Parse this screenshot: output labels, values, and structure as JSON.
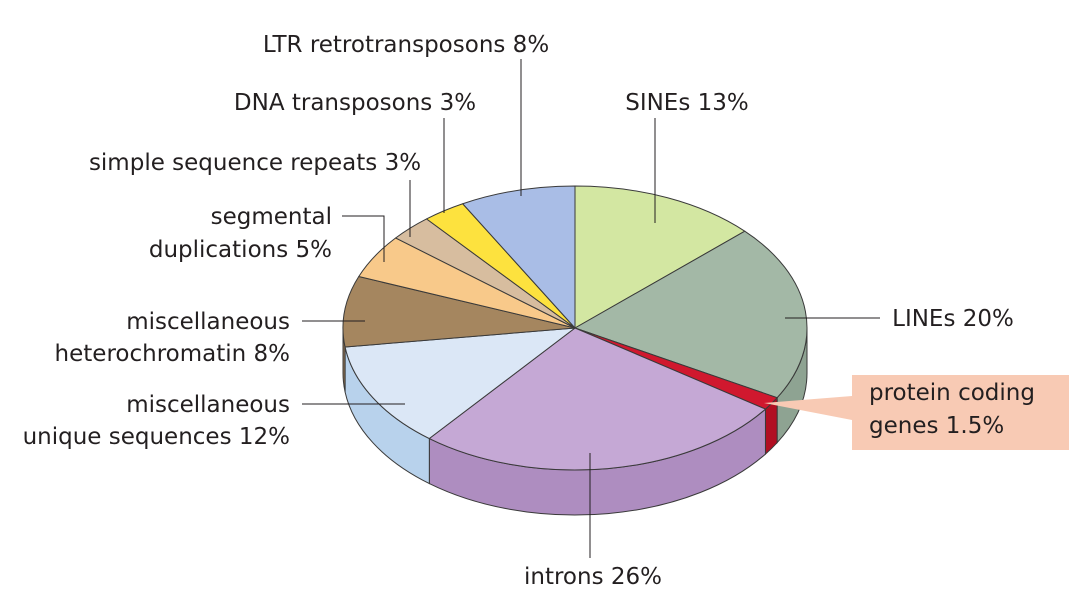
{
  "chart_data": {
    "type": "pie",
    "subtype": "3d",
    "slices": [
      {
        "label": "SINEs 13%",
        "value": 13,
        "color": "#d3e7a2",
        "side_color": "#b5cb82"
      },
      {
        "label": "LINEs 20%",
        "value": 20,
        "color": "#a3b8a6",
        "side_color": "#8ea392"
      },
      {
        "label": "protein coding genes 1.5%",
        "value": 1.5,
        "color": "#d0182e",
        "side_color": "#b10f22",
        "highlight_bg": "#f8cab4"
      },
      {
        "label": "introns 26%",
        "value": 26,
        "color": "#c5a8d5",
        "side_color": "#ae8dc0"
      },
      {
        "label": "miscellaneous unique sequences 12%",
        "value": 12,
        "color": "#dbe7f6",
        "side_color": "#b8d2ec"
      },
      {
        "label": "miscellaneous heterochromatin 8%",
        "value": 8,
        "color": "#a5865f",
        "side_color": "#8e7050"
      },
      {
        "label": "segmental duplications 5%",
        "value": 5,
        "color": "#f8c98a",
        "side_color": "#e0b070"
      },
      {
        "label": "simple sequence repeats 3%",
        "value": 3,
        "color": "#d7bd9f",
        "side_color": "#c2a684"
      },
      {
        "label": "DNA transposons 3%",
        "value": 3,
        "color": "#fde23e",
        "side_color": "#e8c920"
      },
      {
        "label": "LTR retrotransposons 8%",
        "value": 8,
        "color": "#a9bde6",
        "side_color": "#8fa6d3"
      }
    ],
    "label_lines": {
      "SINEs": [
        "SINEs 13%"
      ],
      "LINEs": [
        "LINEs 20%"
      ],
      "protein": [
        "protein coding",
        "genes 1.5%"
      ],
      "introns": [
        "introns 26%"
      ],
      "unique": [
        "miscellaneous",
        "unique sequences 12%"
      ],
      "hetero": [
        "miscellaneous",
        "heterochromatin 8%"
      ],
      "segmental": [
        "segmental",
        "duplications 5%"
      ],
      "simple": [
        "simple sequence repeats 3%"
      ],
      "dna": [
        "DNA transposons 3%"
      ],
      "ltr": [
        "LTR retrotransposons 8%"
      ]
    }
  }
}
